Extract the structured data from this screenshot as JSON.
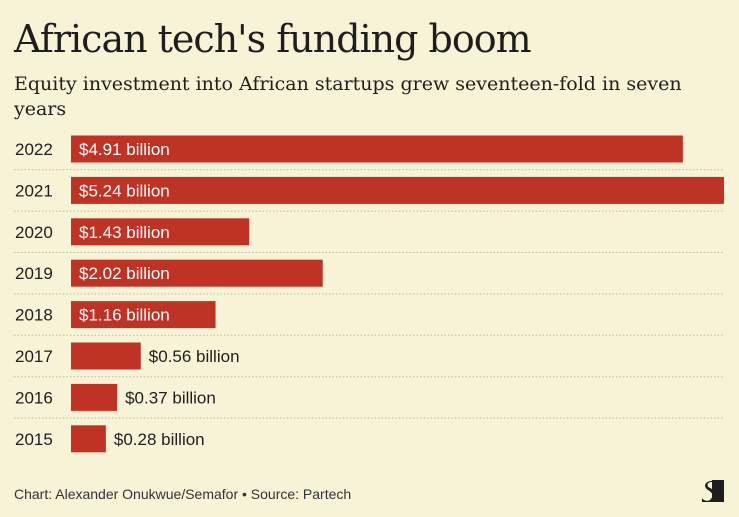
{
  "title": "African tech's funding boom",
  "subtitle": "Equity investment into African startups grew seventeen-fold in seven years",
  "footer": "Chart: Alexander Onukwue/Semafor • Source: Partech",
  "logo_text": "S",
  "colors": {
    "bar": "#bf3324",
    "background": "#f7f3d7"
  },
  "chart_data": {
    "type": "bar",
    "orientation": "horizontal",
    "categories": [
      "2022",
      "2021",
      "2020",
      "2019",
      "2018",
      "2017",
      "2016",
      "2015"
    ],
    "values": [
      4.91,
      5.24,
      1.43,
      2.02,
      1.16,
      0.56,
      0.37,
      0.28
    ],
    "data_labels": [
      "$4.91 billion",
      "$5.24 billion",
      "$1.43 billion",
      "$2.02 billion",
      "$1.16 billion",
      "$0.56 billion",
      "$0.37 billion",
      "$0.28 billion"
    ],
    "xlim": [
      0,
      5.24
    ],
    "xlabel": "",
    "ylabel": "",
    "grid": false
  }
}
